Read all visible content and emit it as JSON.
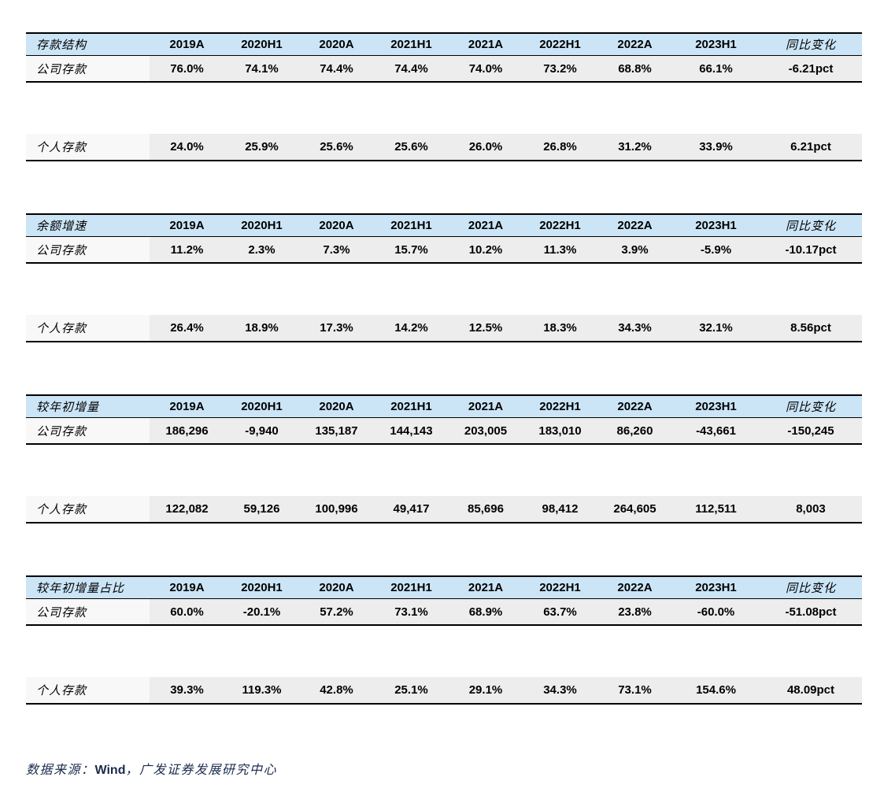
{
  "columns": [
    "2019A",
    "2020H1",
    "2020A",
    "2021H1",
    "2021A",
    "2022H1",
    "2022A",
    "2023H1",
    "同比变化"
  ],
  "tables": [
    {
      "title": "存款结构",
      "rows": [
        {
          "label": "公司存款",
          "values": [
            "76.0%",
            "74.1%",
            "74.4%",
            "74.4%",
            "74.0%",
            "73.2%",
            "68.8%",
            "66.1%",
            "-6.21pct"
          ]
        },
        {
          "label": "个人存款",
          "values": [
            "24.0%",
            "25.9%",
            "25.6%",
            "25.6%",
            "26.0%",
            "26.8%",
            "31.2%",
            "33.9%",
            "6.21pct"
          ]
        }
      ]
    },
    {
      "title": "余额增速",
      "rows": [
        {
          "label": "公司存款",
          "values": [
            "11.2%",
            "2.3%",
            "7.3%",
            "15.7%",
            "10.2%",
            "11.3%",
            "3.9%",
            "-5.9%",
            "-10.17pct"
          ]
        },
        {
          "label": "个人存款",
          "values": [
            "26.4%",
            "18.9%",
            "17.3%",
            "14.2%",
            "12.5%",
            "18.3%",
            "34.3%",
            "32.1%",
            "8.56pct"
          ]
        }
      ]
    },
    {
      "title": "较年初增量",
      "rows": [
        {
          "label": "公司存款",
          "values": [
            "186,296",
            "-9,940",
            "135,187",
            "144,143",
            "203,005",
            "183,010",
            "86,260",
            "-43,661",
            "-150,245"
          ]
        },
        {
          "label": "个人存款",
          "values": [
            "122,082",
            "59,126",
            "100,996",
            "49,417",
            "85,696",
            "98,412",
            "264,605",
            "112,511",
            "8,003"
          ]
        }
      ]
    },
    {
      "title": "较年初增量占比",
      "rows": [
        {
          "label": "公司存款",
          "values": [
            "60.0%",
            "-20.1%",
            "57.2%",
            "73.1%",
            "68.9%",
            "63.7%",
            "23.8%",
            "-60.0%",
            "-51.08pct"
          ]
        },
        {
          "label": "个人存款",
          "values": [
            "39.3%",
            "119.3%",
            "42.8%",
            "25.1%",
            "29.1%",
            "34.3%",
            "73.1%",
            "154.6%",
            "48.09pct"
          ]
        }
      ]
    }
  ],
  "footer": {
    "prefix": "数据来源：",
    "source": "Wind",
    "suffix": "，广发证券发展研究中心"
  },
  "colors": {
    "header_bg": "#cbe5f7",
    "value_cell_bg": "#ededed",
    "label_cell_bg": "#f8f8f8",
    "border": "#000000",
    "footer_text": "#1b2b4d"
  }
}
